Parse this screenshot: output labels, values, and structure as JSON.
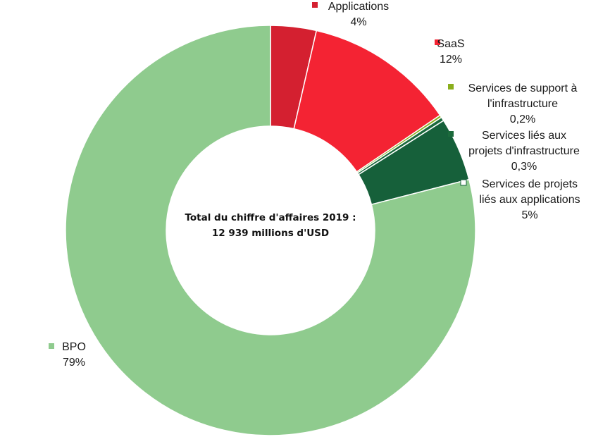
{
  "chart_data": {
    "type": "pie",
    "center_text": [
      "Total du chiffre d'affaires 2019 :",
      "12 939 millions d'USD"
    ],
    "legend_placement": "outside-labels",
    "slices": [
      {
        "label_lines": [
          "Applications"
        ],
        "pct_label": "4%",
        "value": 3.6,
        "color": "#d42030"
      },
      {
        "label_lines": [
          "SaaS"
        ],
        "pct_label": "12%",
        "value": 11.9,
        "color": "#f42333"
      },
      {
        "label_lines": [
          "Services de support à",
          "l'infrastructure"
        ],
        "pct_label": "0,2%",
        "value": 0.2,
        "color": "#8aae1c"
      },
      {
        "label_lines": [
          "Services liés aux",
          "projets d'infrastructure"
        ],
        "pct_label": "0,3%",
        "value": 0.3,
        "color": "#1b6a3c"
      },
      {
        "label_lines": [
          "Services de projets",
          "liés aux applications"
        ],
        "pct_label": "5%",
        "value": 5.0,
        "color": "#16603a"
      },
      {
        "label_lines": [
          "BPO"
        ],
        "pct_label": "79%",
        "value": 79.0,
        "color": "#8fcb8e"
      }
    ]
  }
}
